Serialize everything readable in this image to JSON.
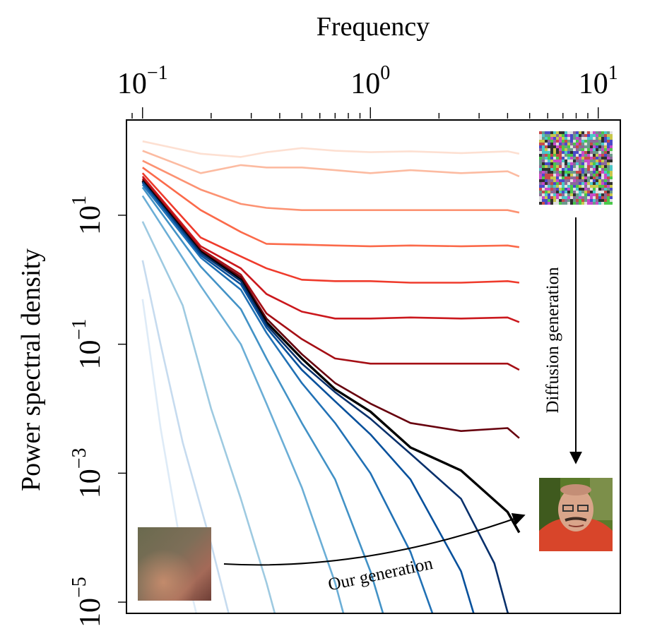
{
  "chart_data": {
    "type": "line",
    "xlabel": "Frequency",
    "ylabel": "Power spectral density",
    "x_scale": "log",
    "y_scale": "log",
    "xlim": [
      0.085,
      12.5
    ],
    "ylim": [
      6.7e-06,
      300
    ],
    "x_ticks": [
      {
        "value": 0.1,
        "base": "10",
        "exp": "−1"
      },
      {
        "value": 1,
        "base": "10",
        "exp": "0"
      },
      {
        "value": 10,
        "base": "10",
        "exp": "1"
      }
    ],
    "y_ticks": [
      {
        "value": 10,
        "base": "10",
        "exp": "1"
      },
      {
        "value": 0.1,
        "base": "10",
        "exp": "−1"
      },
      {
        "value": 0.001,
        "base": "10",
        "exp": "−3"
      },
      {
        "value": 1e-05,
        "base": "10",
        "exp": "−5"
      }
    ],
    "x_axis_position": "top",
    "grid": false,
    "annotations": {
      "diffusion": "Diffusion generation",
      "ours": "Our generation"
    },
    "series": [
      {
        "group": "diffusion",
        "color": "#fde0d2",
        "x": [
          0.1,
          0.18,
          0.27,
          0.35,
          0.5,
          0.7,
          1.0,
          1.5,
          2.5,
          4.0,
          4.5
        ],
        "y": [
          140,
          90,
          80,
          95,
          110,
          100,
          95,
          98,
          92,
          98,
          90
        ]
      },
      {
        "group": "diffusion",
        "color": "#fcbba1",
        "x": [
          0.1,
          0.18,
          0.27,
          0.35,
          0.5,
          0.7,
          1.0,
          1.5,
          2.5,
          4.0,
          4.5
        ],
        "y": [
          100,
          45,
          60,
          55,
          55,
          50,
          45,
          50,
          45,
          48,
          40
        ]
      },
      {
        "group": "diffusion",
        "color": "#fc9272",
        "x": [
          0.1,
          0.18,
          0.27,
          0.35,
          0.5,
          0.7,
          1.0,
          1.5,
          2.5,
          4.0,
          4.5
        ],
        "y": [
          70,
          25,
          15,
          13,
          12,
          12,
          12,
          12,
          12,
          12,
          11
        ]
      },
      {
        "group": "diffusion",
        "color": "#fb6a4a",
        "x": [
          0.1,
          0.18,
          0.27,
          0.35,
          0.5,
          0.7,
          1.0,
          1.5,
          2.5,
          4.0,
          4.5
        ],
        "y": [
          55,
          12,
          5.5,
          3.6,
          3.5,
          3.4,
          3.3,
          3.4,
          3.3,
          3.4,
          3.2
        ]
      },
      {
        "group": "diffusion",
        "color": "#ef3b2c",
        "x": [
          0.1,
          0.18,
          0.27,
          0.35,
          0.5,
          0.7,
          1.0,
          1.5,
          2.5,
          4.0,
          4.5
        ],
        "y": [
          45,
          4.5,
          2.3,
          1.5,
          1.0,
          0.95,
          0.95,
          0.9,
          0.9,
          0.95,
          0.9
        ]
      },
      {
        "group": "diffusion",
        "color": "#cb181d",
        "x": [
          0.1,
          0.18,
          0.27,
          0.35,
          0.5,
          0.7,
          1.0,
          1.5,
          2.5,
          4.0,
          4.5
        ],
        "y": [
          40,
          3.3,
          1.5,
          0.6,
          0.32,
          0.25,
          0.25,
          0.26,
          0.25,
          0.26,
          0.22
        ]
      },
      {
        "group": "diffusion",
        "color": "#a50f15",
        "x": [
          0.1,
          0.18,
          0.27,
          0.35,
          0.5,
          0.7,
          1.0,
          1.5,
          2.5,
          4.0,
          4.5
        ],
        "y": [
          37,
          3.0,
          1.2,
          0.3,
          0.12,
          0.06,
          0.05,
          0.05,
          0.05,
          0.05,
          0.04
        ]
      },
      {
        "group": "diffusion",
        "color": "#67000d",
        "x": [
          0.1,
          0.18,
          0.27,
          0.35,
          0.5,
          0.7,
          1.0,
          1.5,
          2.5,
          4.0,
          4.5
        ],
        "y": [
          35,
          2.8,
          1.1,
          0.25,
          0.07,
          0.025,
          0.012,
          0.006,
          0.0045,
          0.005,
          0.0035
        ]
      },
      {
        "group": "target",
        "color": "#000000",
        "x": [
          0.1,
          0.18,
          0.27,
          0.35,
          0.5,
          0.7,
          1.0,
          1.5,
          2.5,
          4.0,
          4.5
        ],
        "y": [
          34,
          2.7,
          1.0,
          0.22,
          0.06,
          0.02,
          0.009,
          0.0025,
          0.0011,
          0.00025,
          0.00012
        ]
      },
      {
        "group": "ours",
        "color": "#08306b",
        "x": [
          0.1,
          0.18,
          0.27,
          0.35,
          0.5,
          0.7,
          1.0,
          1.5,
          2.5,
          3.5,
          4.0,
          4.5
        ],
        "y": [
          33,
          2.6,
          0.95,
          0.2,
          0.05,
          0.018,
          0.007,
          0.002,
          0.0004,
          4e-05,
          7e-06,
          3.5e-06
        ]
      },
      {
        "group": "ours",
        "color": "#08519c",
        "x": [
          0.1,
          0.18,
          0.27,
          0.35,
          0.5,
          0.7,
          1.0,
          1.5,
          2.5,
          3.0
        ],
        "y": [
          32,
          2.4,
          0.85,
          0.18,
          0.04,
          0.013,
          0.004,
          0.0008,
          3e-05,
          3.5e-06
        ]
      },
      {
        "group": "ours",
        "color": "#2171b5",
        "x": [
          0.1,
          0.18,
          0.27,
          0.35,
          0.5,
          0.7,
          1.0,
          1.5,
          2.0
        ],
        "y": [
          30,
          2.2,
          0.7,
          0.15,
          0.025,
          0.006,
          0.001,
          6e-05,
          3.5e-06
        ]
      },
      {
        "group": "ours",
        "color": "#4292c6",
        "x": [
          0.1,
          0.18,
          0.27,
          0.35,
          0.5,
          0.7,
          1.0,
          1.2
        ],
        "y": [
          27,
          1.6,
          0.35,
          0.06,
          0.006,
          0.0008,
          3e-05,
          3.5e-06
        ]
      },
      {
        "group": "ours",
        "color": "#6baed6",
        "x": [
          0.1,
          0.18,
          0.27,
          0.35,
          0.5,
          0.7,
          0.8
        ],
        "y": [
          20,
          0.8,
          0.1,
          0.012,
          0.0006,
          2e-05,
          3.5e-06
        ]
      },
      {
        "group": "ours",
        "color": "#9ecae1",
        "x": [
          0.1,
          0.15,
          0.2,
          0.27,
          0.35,
          0.4
        ],
        "y": [
          8,
          0.4,
          0.01,
          0.0004,
          2e-05,
          3.5e-06
        ]
      },
      {
        "group": "ours",
        "color": "#c6dbef",
        "x": [
          0.1,
          0.12,
          0.15,
          0.2,
          0.25
        ],
        "y": [
          2,
          0.1,
          0.003,
          8e-05,
          3.5e-06
        ]
      },
      {
        "group": "ours",
        "color": "#deebf7",
        "x": [
          0.1,
          0.12,
          0.15,
          0.18
        ],
        "y": [
          0.5,
          0.005,
          5e-05,
          3.5e-06
        ]
      }
    ]
  }
}
